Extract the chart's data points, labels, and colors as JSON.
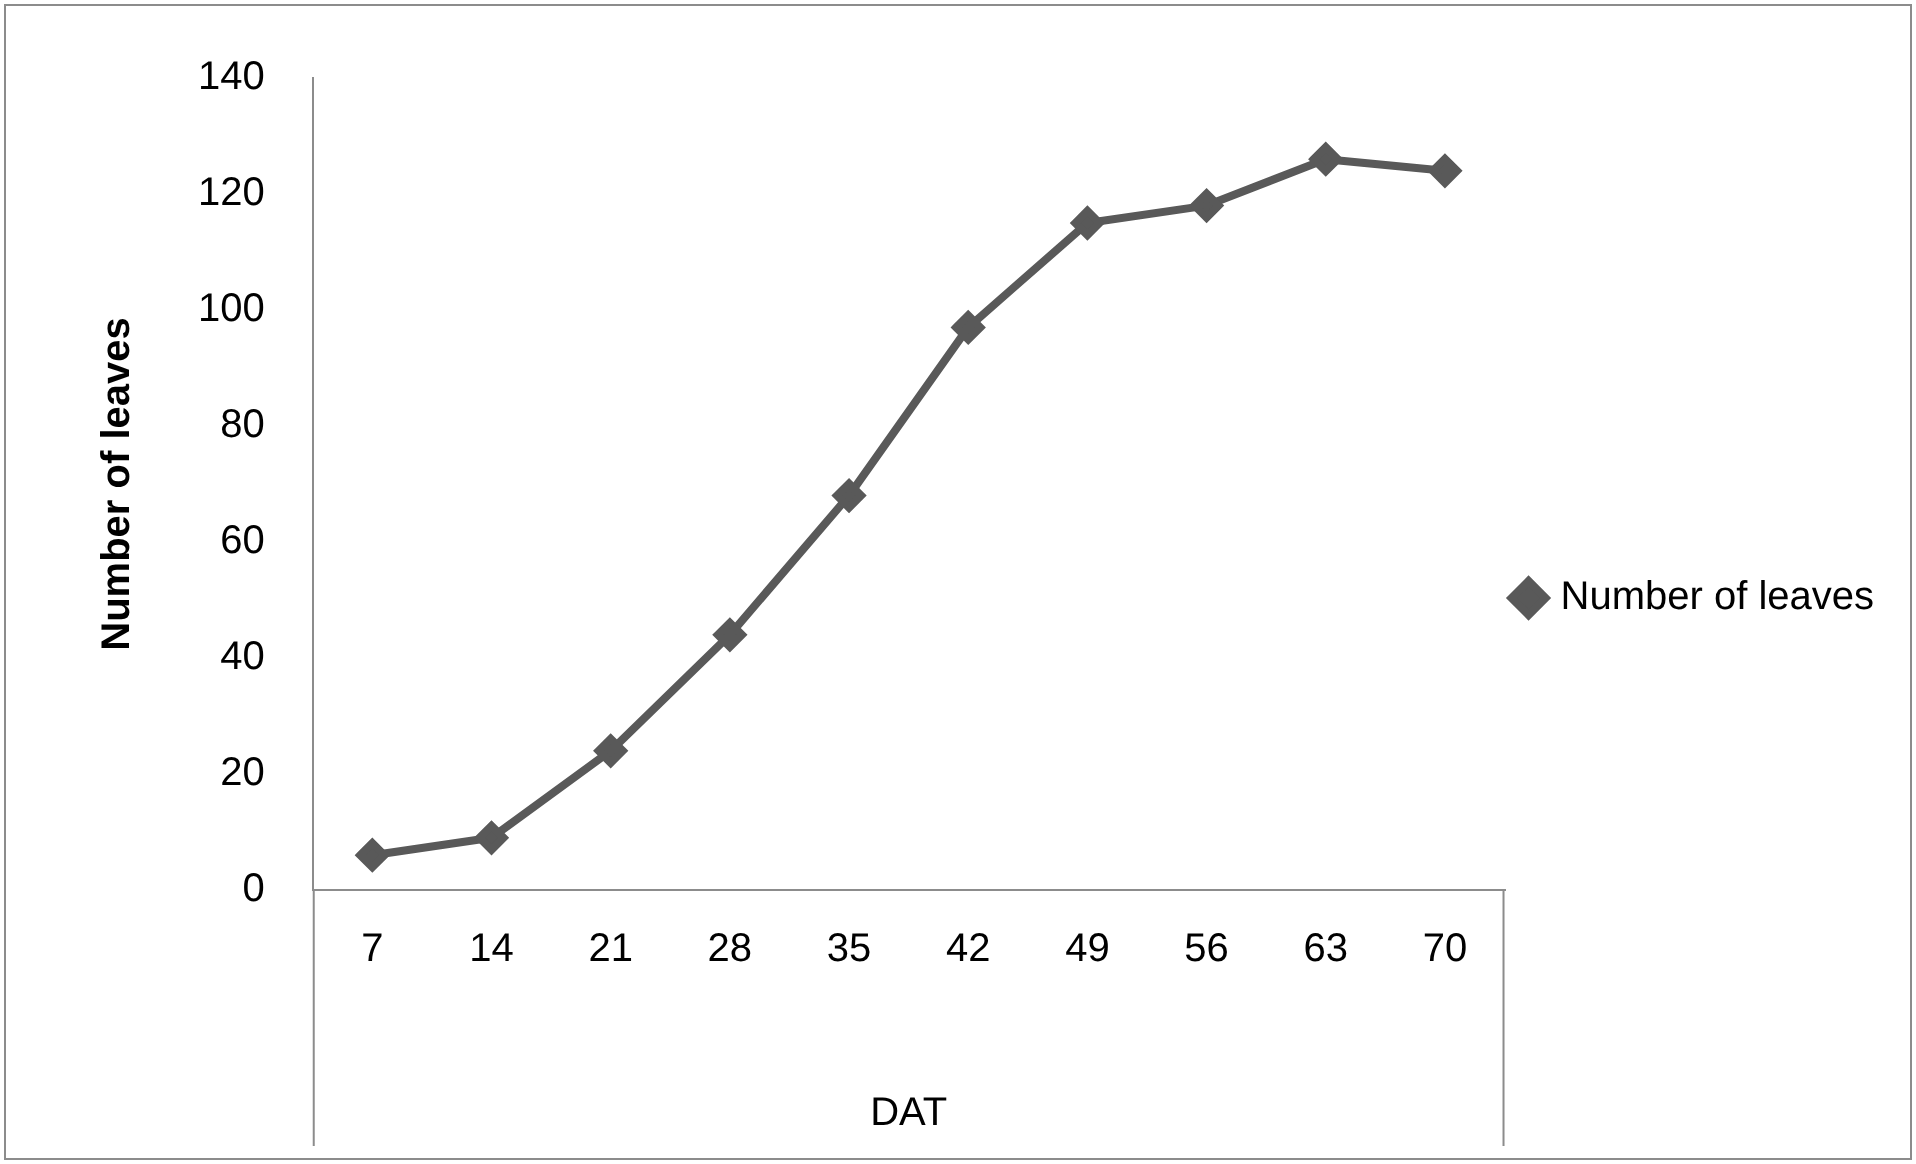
{
  "chart_data": {
    "type": "line",
    "xlabel": "DAT",
    "ylabel": "Number of leaves",
    "categories": [
      "7",
      "14",
      "21",
      "28",
      "35",
      "42",
      "49",
      "56",
      "63",
      "70"
    ],
    "series": [
      {
        "name": "Number of leaves",
        "color": "#595959",
        "values": [
          6,
          9,
          24,
          44,
          68,
          97,
          115,
          118,
          126,
          124
        ]
      }
    ],
    "ylim": [
      0,
      140
    ],
    "yticks": [
      0,
      20,
      40,
      60,
      80,
      100,
      120,
      140
    ],
    "legend": "right",
    "marker": "diamond",
    "line_style": "solid"
  }
}
